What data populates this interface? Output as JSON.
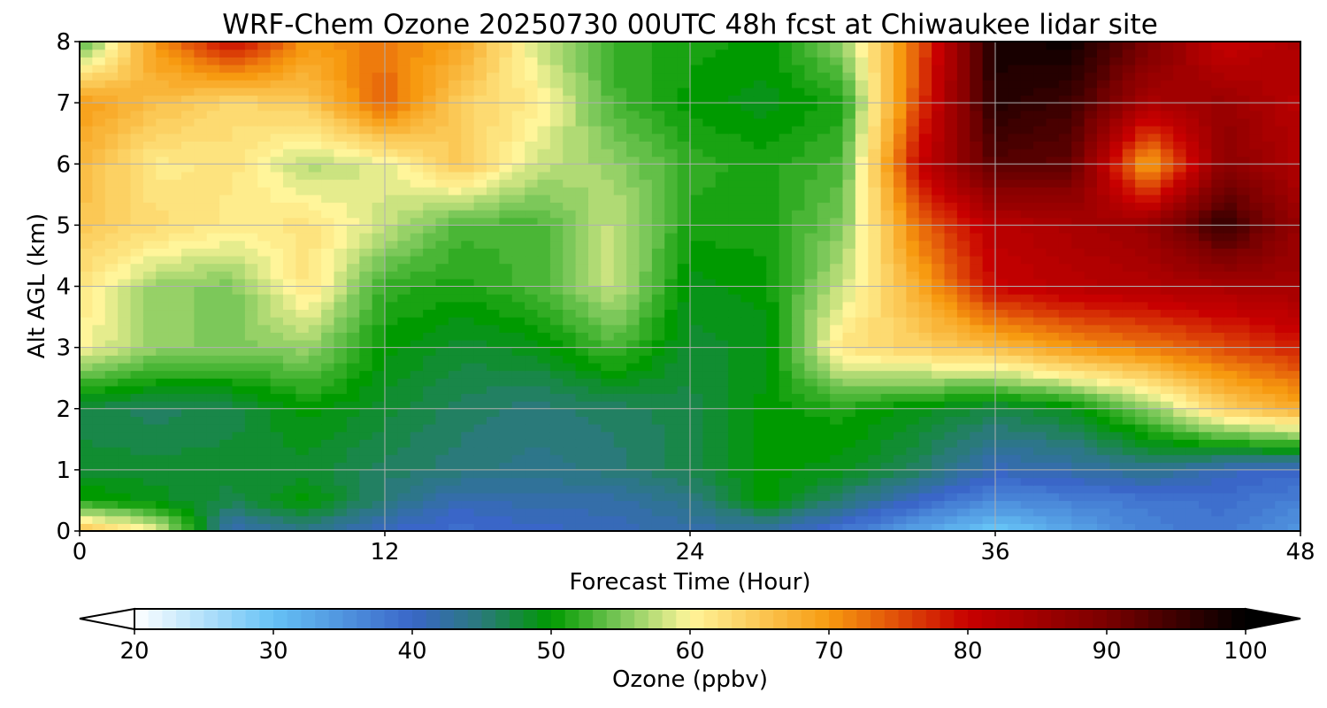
{
  "chart_data": {
    "type": "heatmap",
    "title": "WRF-Chem Ozone  20250730 00UTC 48h fcst at Chiwaukee lidar site",
    "xlabel": "Forecast Time (Hour)",
    "ylabel": "Alt AGL (km)",
    "xlim": [
      0,
      48
    ],
    "ylim": [
      0,
      8
    ],
    "xticks": [
      0,
      12,
      24,
      36,
      48
    ],
    "yticks": [
      0,
      1,
      2,
      3,
      4,
      5,
      6,
      7,
      8
    ],
    "grid": true,
    "x": [
      0,
      3,
      6,
      9,
      12,
      15,
      18,
      21,
      24,
      27,
      30,
      33,
      36,
      39,
      42,
      45,
      48
    ],
    "y": [
      0,
      0.5,
      1,
      2,
      3,
      4,
      5,
      6,
      7,
      8
    ],
    "z": [
      [
        66,
        60,
        41,
        44,
        40,
        39,
        40,
        41,
        42,
        42,
        38,
        33,
        29,
        33,
        37,
        38,
        35
      ],
      [
        51,
        49,
        47,
        50,
        45,
        41,
        42,
        42,
        44,
        50,
        45,
        40,
        36,
        37,
        38,
        39,
        37
      ],
      [
        48,
        48,
        48,
        48,
        46,
        45,
        44,
        45,
        47,
        50,
        49,
        46,
        41,
        42,
        44,
        41,
        40
      ],
      [
        47,
        46,
        47,
        50,
        48,
        46,
        45,
        46,
        47,
        50,
        51,
        49,
        47,
        49,
        55,
        64,
        68
      ],
      [
        60,
        56,
        55,
        56,
        50,
        48,
        49,
        53,
        48,
        49,
        62,
        64,
        66,
        70,
        72,
        75,
        78
      ],
      [
        62,
        56,
        55,
        62,
        52,
        51,
        53,
        58,
        49,
        50,
        58,
        68,
        80,
        82,
        83,
        84,
        85
      ],
      [
        65,
        63,
        61,
        62,
        58,
        53,
        53,
        58,
        51,
        51,
        55,
        73,
        82,
        84,
        86,
        96,
        86
      ],
      [
        67,
        61,
        62,
        57,
        59,
        65,
        58,
        56,
        52,
        51,
        53,
        80,
        93,
        92,
        68,
        88,
        83
      ],
      [
        70,
        66,
        63,
        65,
        74,
        64,
        61,
        53,
        50,
        49,
        51,
        76,
        97,
        95,
        84,
        86,
        82
      ],
      [
        52,
        70,
        80,
        70,
        72,
        69,
        58,
        52,
        51,
        50,
        56,
        74,
        98,
        99,
        90,
        80,
        84
      ]
    ],
    "colorbar": {
      "label": "Ozone  (ppbv)",
      "min": 20,
      "max": 100,
      "ticks": [
        20,
        30,
        40,
        50,
        60,
        70,
        80,
        90,
        100
      ],
      "extend": "both",
      "stops": [
        {
          "v": 20,
          "c": "#ffffff"
        },
        {
          "v": 30,
          "c": "#66c2f5"
        },
        {
          "v": 40,
          "c": "#3a66c8"
        },
        {
          "v": 45,
          "c": "#2a7a7a"
        },
        {
          "v": 50,
          "c": "#009a00"
        },
        {
          "v": 55,
          "c": "#7cc85a"
        },
        {
          "v": 60,
          "c": "#fff59a"
        },
        {
          "v": 70,
          "c": "#f79a10"
        },
        {
          "v": 80,
          "c": "#c80000"
        },
        {
          "v": 90,
          "c": "#7a0000"
        },
        {
          "v": 100,
          "c": "#000000"
        }
      ]
    }
  }
}
